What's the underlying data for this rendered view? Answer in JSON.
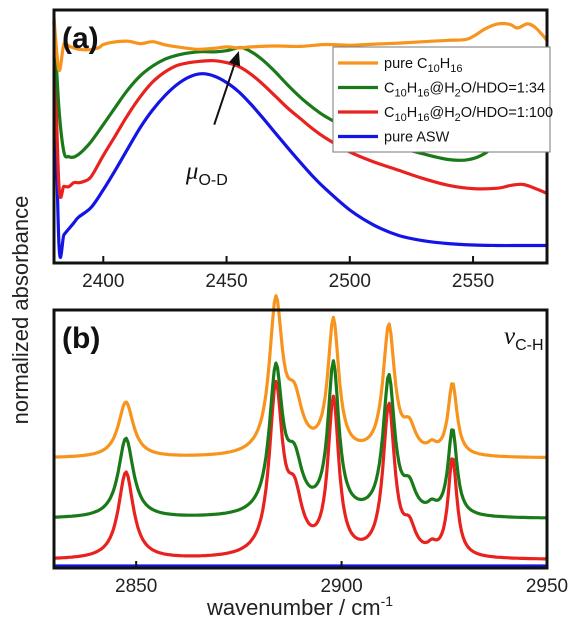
{
  "figure": {
    "shared_ylabel": "normalized absorbance",
    "xlabel": "wavenumber / cm",
    "xlabel_superscript": "-1"
  },
  "chart_data": [
    {
      "type": "line",
      "panel_label": "(a)",
      "xlim": [
        2380,
        2580
      ],
      "ylim": [
        0,
        1
      ],
      "xticks": [
        2400,
        2450,
        2500,
        2550
      ],
      "xtick_labels": [
        "2400",
        "2450",
        "2500",
        "2550"
      ],
      "yticks": [],
      "grid": false,
      "legend_position": "top-right",
      "annotation": {
        "symbol": "μ",
        "subscript": "O-D",
        "x": 2440,
        "y": 0.32
      },
      "arrow": {
        "from": [
          2445,
          0.55
        ],
        "to": [
          2455,
          0.86
        ]
      },
      "series": [
        {
          "name": "pure C10H16",
          "legend_parts": [
            [
              "pure C",
              ""
            ],
            [
              "10",
              "sub"
            ],
            [
              "H",
              ""
            ],
            [
              "16",
              "sub"
            ]
          ],
          "color": "#f7941d",
          "x": [
            2380,
            2382,
            2384,
            2386,
            2388,
            2390,
            2394,
            2398,
            2400,
            2404,
            2410,
            2415,
            2420,
            2425,
            2430,
            2438,
            2445,
            2450,
            2455,
            2460,
            2470,
            2480,
            2490,
            2500,
            2510,
            2520,
            2530,
            2540,
            2548,
            2555,
            2560,
            2565,
            2568,
            2572,
            2575,
            2578,
            2580
          ],
          "y": [
            1.0,
            0.78,
            0.89,
            0.882,
            0.874,
            0.868,
            0.866,
            0.874,
            0.888,
            0.898,
            0.902,
            0.892,
            0.9,
            0.887,
            0.878,
            0.868,
            0.872,
            0.878,
            0.874,
            0.878,
            0.882,
            0.88,
            0.888,
            0.885,
            0.89,
            0.894,
            0.9,
            0.906,
            0.912,
            0.955,
            0.975,
            0.973,
            0.958,
            0.975,
            0.962,
            0.93,
            0.905
          ]
        },
        {
          "name": "C10H16@H2O/HDO=1:34",
          "legend_parts": [
            [
              "C",
              ""
            ],
            [
              "10",
              "sub"
            ],
            [
              "H",
              ""
            ],
            [
              "16",
              "sub"
            ],
            [
              "@H",
              ""
            ],
            [
              "2",
              "sub"
            ],
            [
              "O/HDO=1:34",
              ""
            ]
          ],
          "color": "#1a7a1a",
          "x": [
            2380,
            2382,
            2384,
            2386,
            2388,
            2390,
            2392,
            2395,
            2400,
            2405,
            2410,
            2415,
            2420,
            2425,
            2430,
            2435,
            2440,
            2445,
            2450,
            2453,
            2456,
            2460,
            2465,
            2470,
            2475,
            2480,
            2485,
            2490,
            2500,
            2510,
            2520,
            2530,
            2540,
            2548,
            2555,
            2560,
            2565,
            2568,
            2572,
            2576,
            2580
          ],
          "y": [
            0.99,
            0.62,
            0.435,
            0.415,
            0.413,
            0.425,
            0.443,
            0.478,
            0.55,
            0.625,
            0.698,
            0.756,
            0.797,
            0.826,
            0.843,
            0.853,
            0.858,
            0.857,
            0.862,
            0.87,
            0.875,
            0.858,
            0.82,
            0.77,
            0.715,
            0.665,
            0.622,
            0.585,
            0.53,
            0.488,
            0.455,
            0.426,
            0.403,
            0.402,
            0.43,
            0.48,
            0.52,
            0.525,
            0.515,
            0.48,
            0.45
          ]
        },
        {
          "name": "C10H16@H2O/HDO=1:100",
          "legend_parts": [
            [
              "C",
              ""
            ],
            [
              "10",
              "sub"
            ],
            [
              "H",
              ""
            ],
            [
              "16",
              "sub"
            ],
            [
              "@H",
              ""
            ],
            [
              "2",
              "sub"
            ],
            [
              "O/HDO=1:100",
              ""
            ]
          ],
          "color": "#e8231f",
          "x": [
            2380,
            2382,
            2384,
            2386,
            2388,
            2390,
            2392,
            2395,
            2400,
            2405,
            2410,
            2415,
            2420,
            2425,
            2430,
            2435,
            2440,
            2445,
            2450,
            2455,
            2460,
            2465,
            2470,
            2475,
            2480,
            2485,
            2490,
            2500,
            2510,
            2520,
            2530,
            2540,
            2550,
            2560,
            2565,
            2570,
            2575,
            2580
          ],
          "y": [
            0.98,
            0.295,
            0.29,
            0.288,
            0.305,
            0.305,
            0.31,
            0.33,
            0.42,
            0.505,
            0.592,
            0.668,
            0.73,
            0.772,
            0.8,
            0.812,
            0.818,
            0.82,
            0.812,
            0.795,
            0.762,
            0.718,
            0.668,
            0.618,
            0.575,
            0.532,
            0.495,
            0.435,
            0.392,
            0.357,
            0.322,
            0.294,
            0.28,
            0.282,
            0.293,
            0.298,
            0.282,
            0.26
          ]
        },
        {
          "name": "pure ASW",
          "legend_parts": [
            [
              "pure ASW",
              ""
            ]
          ],
          "color": "#1414e6",
          "x": [
            2380,
            2382,
            2384,
            2386,
            2388,
            2390,
            2395,
            2400,
            2405,
            2410,
            2415,
            2420,
            2425,
            2430,
            2435,
            2440,
            2445,
            2450,
            2455,
            2460,
            2465,
            2470,
            2475,
            2480,
            2485,
            2490,
            2500,
            2510,
            2520,
            2530,
            2540,
            2550,
            2560,
            2570,
            2580
          ],
          "y": [
            0.98,
            0.05,
            0.085,
            0.11,
            0.135,
            0.16,
            0.2,
            0.275,
            0.36,
            0.45,
            0.538,
            0.612,
            0.672,
            0.72,
            0.752,
            0.765,
            0.755,
            0.728,
            0.688,
            0.635,
            0.575,
            0.512,
            0.45,
            0.39,
            0.332,
            0.28,
            0.19,
            0.125,
            0.082,
            0.06,
            0.048,
            0.042,
            0.04,
            0.04,
            0.04
          ]
        }
      ]
    },
    {
      "type": "line",
      "panel_label": "(b)",
      "xlim": [
        2830,
        2950
      ],
      "ylim": [
        0,
        1
      ],
      "xticks": [
        2850,
        2900,
        2950
      ],
      "xtick_labels": [
        "2850",
        "2900",
        "2950"
      ],
      "yticks": [],
      "grid": false,
      "annotation": {
        "symbol": "ν",
        "subscript": "C-H"
      },
      "series": [
        {
          "color": "#f7941d",
          "baseline": 0.42,
          "peaks": [
            [
              2847.5,
              0.23,
              2.2
            ],
            [
              2884,
              0.62,
              1.9
            ],
            [
              2888.5,
              0.2,
              2.3
            ],
            [
              2898,
              0.55,
              1.6
            ],
            [
              2911.5,
              0.53,
              1.7
            ],
            [
              2916.5,
              0.1,
              1.8
            ],
            [
              2922,
              0.03,
              1.2
            ],
            [
              2927,
              0.3,
              1.3
            ]
          ]
        },
        {
          "color": "#1a7a1a",
          "baseline": 0.17,
          "peaks": [
            [
              2847.5,
              0.33,
              2.2
            ],
            [
              2884,
              0.59,
              1.9
            ],
            [
              2888.5,
              0.2,
              2.3
            ],
            [
              2898,
              0.62,
              1.6
            ],
            [
              2911.5,
              0.57,
              1.7
            ],
            [
              2916.5,
              0.1,
              1.8
            ],
            [
              2922,
              0.03,
              1.2
            ],
            [
              2927,
              0.36,
              1.3
            ]
          ]
        },
        {
          "color": "#e8231f",
          "baseline": 0.0,
          "peaks": [
            [
              2847.5,
              0.36,
              2.2
            ],
            [
              2884,
              0.68,
              1.9
            ],
            [
              2888.5,
              0.22,
              2.3
            ],
            [
              2898,
              0.64,
              1.6
            ],
            [
              2911.5,
              0.62,
              1.7
            ],
            [
              2916.5,
              0.1,
              1.8
            ],
            [
              2922,
              0.03,
              1.2
            ],
            [
              2927,
              0.41,
              1.3
            ]
          ]
        },
        {
          "color": "#1414e6",
          "baseline": -0.025,
          "peaks": []
        }
      ]
    }
  ]
}
